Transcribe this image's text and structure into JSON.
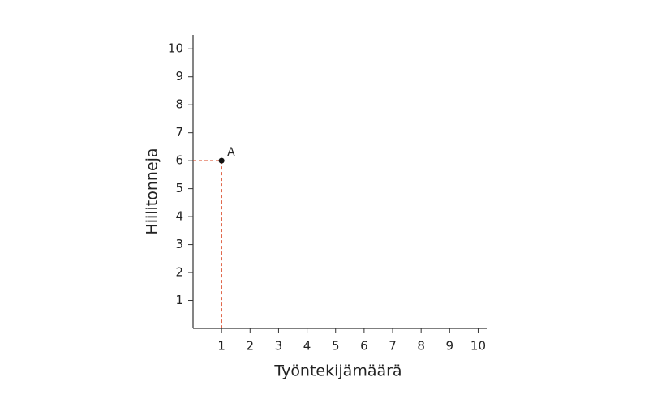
{
  "chart_data": {
    "type": "scatter",
    "xlabel": "Työntekijämäärä",
    "ylabel": "Hiilitonneja",
    "x": [
      1
    ],
    "values": [
      6
    ],
    "point_labels": [
      "A"
    ],
    "color": "#111111",
    "guide_color": "#d9411e",
    "xlim": [
      0,
      10.3
    ],
    "ylim": [
      0,
      10.5
    ],
    "xticks": [
      1,
      2,
      3,
      4,
      5,
      6,
      7,
      8,
      9,
      10
    ],
    "yticks": [
      1,
      2,
      3,
      4,
      5,
      6,
      7,
      8,
      9,
      10
    ],
    "guides": true
  }
}
